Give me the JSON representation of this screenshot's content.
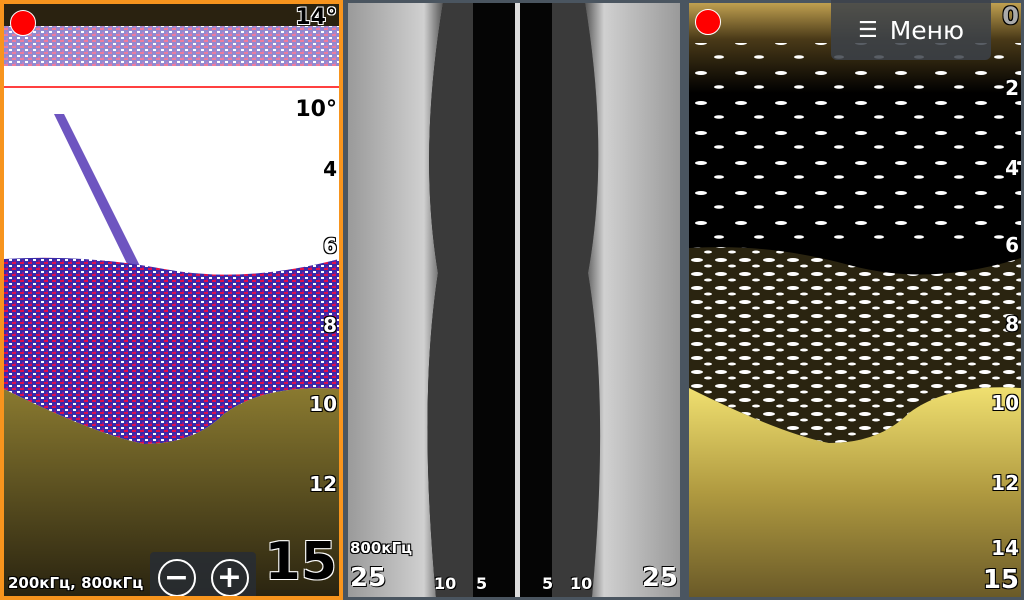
{
  "left_panel": {
    "recording_indicator": "#ff0000",
    "temperature_top": "14°",
    "temperature_mid": "10°",
    "depth_scale": [
      "4",
      "6",
      "8",
      "10",
      "12"
    ],
    "depth_range": "15",
    "frequency": "200кГц, 800кГц",
    "zoom_out_label": "−",
    "zoom_in_label": "+",
    "border_color": "#f7941d"
  },
  "middle_panel": {
    "frequency": "800кГц",
    "range_scale": [
      "25",
      "10",
      "5",
      "5",
      "10",
      "25"
    ]
  },
  "right_panel": {
    "menu_icon": "hamburger-icon",
    "menu_label": "Меню",
    "depth_scale": [
      "0",
      "2",
      "4",
      "6",
      "8",
      "10",
      "12",
      "14"
    ],
    "depth_range": "15"
  }
}
